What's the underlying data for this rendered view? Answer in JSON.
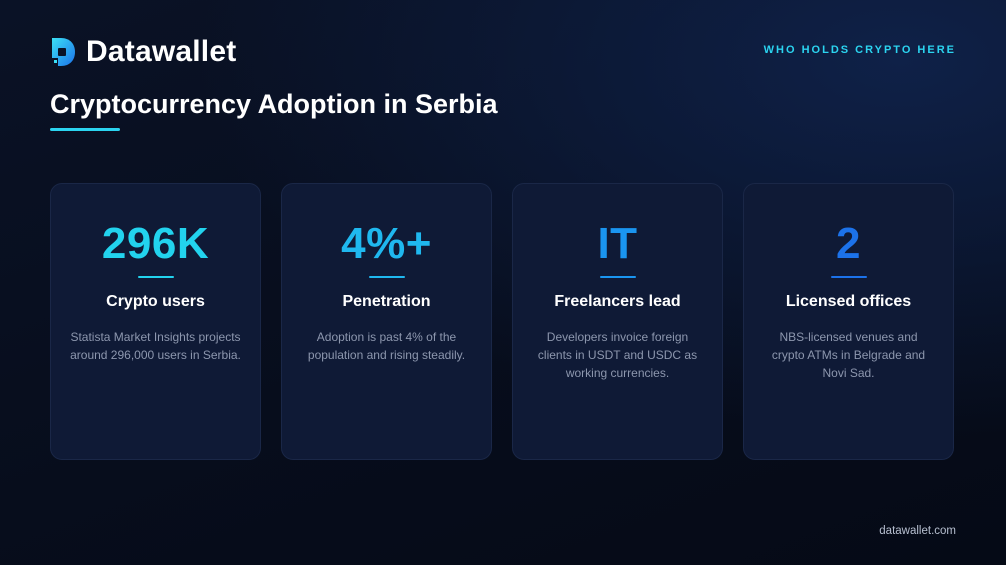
{
  "brand": {
    "name": "Datawallet",
    "kicker": "WHO HOLDS CRYPTO HERE"
  },
  "title": "Cryptocurrency Adoption in Serbia",
  "cards": [
    {
      "stat": "296K",
      "label": "Crypto users",
      "description": "Statista Market Insights projects around 296,000 users in Serbia.",
      "color": "#22d3ee"
    },
    {
      "stat": "4%+",
      "label": "Penetration",
      "description": "Adoption is past 4% of the population and rising steadily.",
      "color": "#1fb8ef"
    },
    {
      "stat": "IT",
      "label": "Freelancers lead",
      "description": "Developers invoice foreign clients in USDT and USDC as working currencies.",
      "color": "#1a95f0"
    },
    {
      "stat": "2",
      "label": "Licensed offices",
      "description": "NBS-licensed venues and crypto ATMs in Belgrade and Novi Sad.",
      "color": "#1c72ea"
    }
  ],
  "footer": "datawallet.com",
  "colors": {
    "accent": "#2bd4f0",
    "card_bg": "#0f1a36",
    "background": "#070d1c"
  }
}
